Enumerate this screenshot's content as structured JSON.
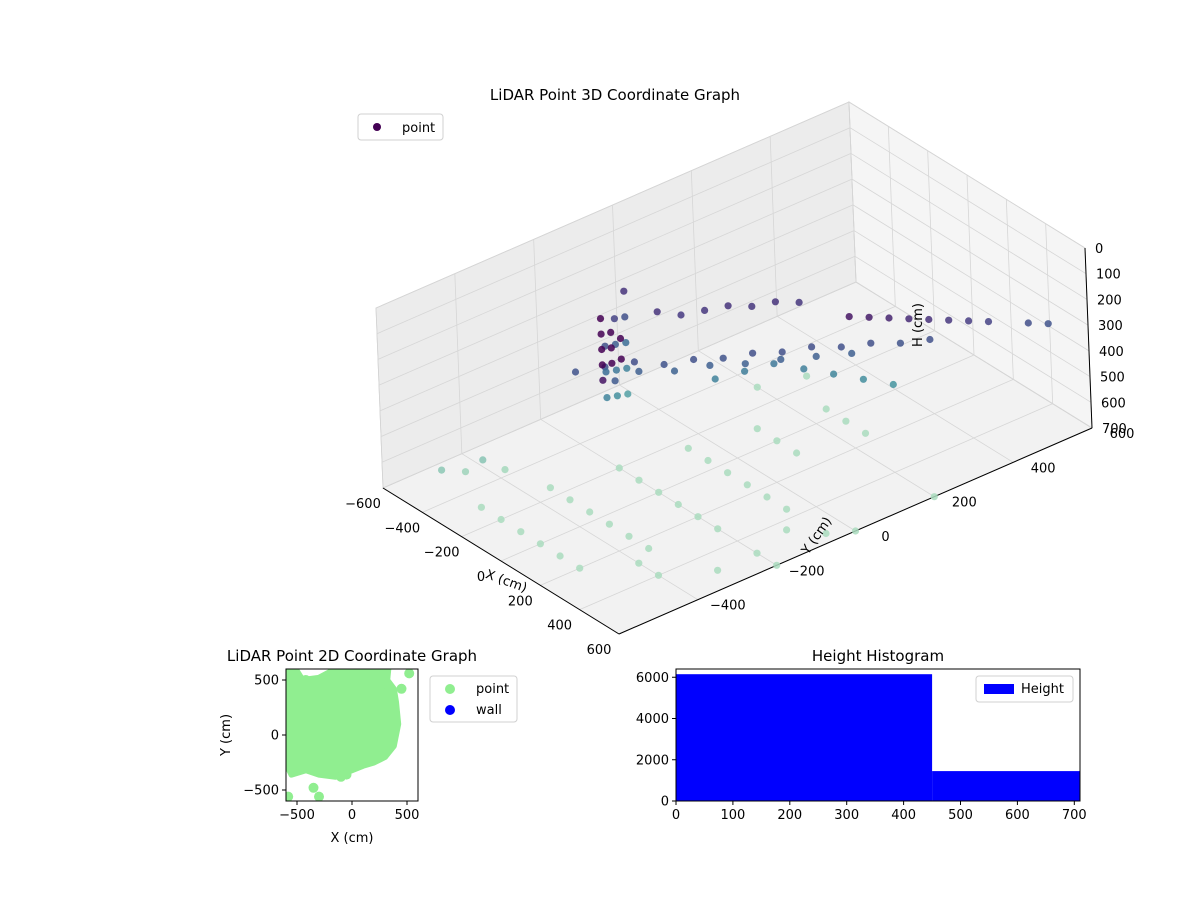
{
  "chart_data": [
    {
      "type": "scatter3d",
      "title": "LiDAR Point 3D Coordinate Graph",
      "xlabel": "X (cm)",
      "ylabel": "Y (cm)",
      "zlabel": "H (cm)",
      "xlim": [
        -600,
        600
      ],
      "ylim": [
        -600,
        600
      ],
      "zlim": [
        0,
        700
      ],
      "z_inverted": true,
      "x_ticks": [
        -600,
        -400,
        -200,
        0,
        200,
        400,
        600
      ],
      "y_ticks": [
        -400,
        -200,
        0,
        200,
        400,
        600
      ],
      "z_ticks": [
        0,
        100,
        200,
        300,
        400,
        500,
        600,
        700
      ],
      "x_tick_labels": [
        "−600",
        "−400",
        "−200",
        "0",
        "200",
        "400",
        "600"
      ],
      "y_tick_labels": [
        "−400",
        "−200",
        "0",
        "200",
        "400",
        "600"
      ],
      "z_tick_labels": [
        "0",
        "100",
        "200",
        "300",
        "400",
        "500",
        "600",
        "700"
      ],
      "colormap": "viridis",
      "grid": true,
      "legend": {
        "placement": "upper-left",
        "entries": [
          {
            "label": "point",
            "color": "#440154"
          }
        ]
      },
      "series": [
        {
          "name": "point",
          "points_xyz": [
            [
              -150,
              -250,
              250
            ],
            [
              -100,
              -200,
              240
            ],
            [
              -50,
              -150,
              260
            ],
            [
              0,
              -100,
              250
            ],
            [
              50,
              -50,
              255
            ],
            [
              100,
              0,
              245
            ],
            [
              150,
              50,
              250
            ],
            [
              200,
              100,
              240
            ],
            [
              250,
              150,
              250
            ],
            [
              300,
              200,
              245
            ],
            [
              350,
              250,
              255
            ],
            [
              400,
              300,
              250
            ],
            [
              -120,
              -180,
              300
            ],
            [
              -60,
              -120,
              310
            ],
            [
              0,
              -60,
              300
            ],
            [
              60,
              0,
              305
            ],
            [
              120,
              60,
              300
            ],
            [
              180,
              120,
              300
            ],
            [
              240,
              180,
              300
            ],
            [
              -200,
              -300,
              260
            ],
            [
              -100,
              -250,
              280
            ],
            [
              -180,
              -100,
              150
            ],
            [
              -140,
              -60,
              170
            ],
            [
              -100,
              -20,
              160
            ],
            [
              -60,
              20,
              150
            ],
            [
              -20,
              60,
              160
            ],
            [
              20,
              100,
              150
            ],
            [
              60,
              140,
              160
            ],
            [
              0,
              100,
              400
            ],
            [
              50,
              150,
              430
            ],
            [
              100,
              200,
              460
            ],
            [
              150,
              250,
              490
            ],
            [
              200,
              300,
              520
            ],
            [
              -50,
              50,
              420
            ],
            [
              -100,
              0,
              440
            ],
            [
              -350,
              -100,
              150
            ],
            [
              -350,
              -100,
              250
            ],
            [
              -350,
              -100,
              350
            ],
            [
              -350,
              -100,
              450
            ],
            [
              -350,
              -100,
              550
            ],
            [
              -300,
              -150,
              200
            ],
            [
              -300,
              -150,
              300
            ],
            [
              -300,
              -150,
              400
            ],
            [
              -300,
              -150,
              500
            ],
            [
              -250,
              -200,
              250
            ],
            [
              -250,
              -200,
              350
            ],
            [
              -250,
              -200,
              450
            ],
            [
              150,
              -400,
              -180
            ],
            [
              150,
              -400,
              -120
            ],
            [
              150,
              -400,
              -60
            ],
            [
              150,
              -400,
              0
            ],
            [
              150,
              -400,
              60
            ],
            [
              200,
              -400,
              -150
            ],
            [
              200,
              -400,
              -90
            ],
            [
              200,
              -400,
              -30
            ],
            [
              250,
              -400,
              -150
            ],
            [
              250,
              -400,
              -70
            ],
            [
              400,
              200,
              100
            ],
            [
              420,
              240,
              120
            ],
            [
              440,
              280,
              140
            ],
            [
              460,
              320,
              160
            ],
            [
              480,
              360,
              180
            ],
            [
              500,
              400,
              200
            ],
            [
              380,
              160,
              80
            ],
            [
              360,
              120,
              60
            ],
            [
              540,
              480,
              240
            ],
            [
              560,
              520,
              260
            ],
            [
              -500,
              -500,
              650
            ],
            [
              -480,
              -450,
              680
            ],
            [
              -450,
              -420,
              640
            ],
            [
              -420,
              -380,
              690
            ],
            [
              -300,
              -500,
              700
            ],
            [
              -200,
              -500,
              700
            ],
            [
              -100,
              -500,
              700
            ],
            [
              0,
              -500,
              700
            ],
            [
              100,
              -500,
              700
            ],
            [
              200,
              -500,
              700
            ],
            [
              -250,
              -350,
              700
            ],
            [
              -150,
              -350,
              700
            ],
            [
              -50,
              -350,
              700
            ],
            [
              50,
              -350,
              700
            ],
            [
              150,
              -350,
              700
            ],
            [
              250,
              -350,
              700
            ],
            [
              -200,
              -200,
              700
            ],
            [
              -100,
              -200,
              700
            ],
            [
              0,
              -200,
              700
            ],
            [
              100,
              -200,
              700
            ],
            [
              200,
              -200,
              700
            ],
            [
              300,
              -200,
              700
            ],
            [
              -150,
              -50,
              700
            ],
            [
              -50,
              -50,
              700
            ],
            [
              50,
              -50,
              700
            ],
            [
              150,
              -50,
              700
            ],
            [
              250,
              -50,
              700
            ],
            [
              350,
              -50,
              700
            ],
            [
              300,
              -400,
              700
            ],
            [
              400,
              -400,
              700
            ],
            [
              500,
              -300,
              700
            ],
            [
              500,
              -200,
              700
            ],
            [
              450,
              -100,
              700
            ],
            [
              550,
              -50,
              700
            ],
            [
              -100,
              100,
              700
            ],
            [
              0,
              100,
              700
            ],
            [
              100,
              100,
              700
            ],
            [
              -50,
              250,
              700
            ],
            [
              50,
              250,
              700
            ],
            [
              150,
              250,
              700
            ],
            [
              -300,
              200,
              700
            ],
            [
              -250,
              300,
              700
            ],
            [
              600,
              0,
              700
            ],
            [
              600,
              200,
              700
            ],
            [
              600,
              -200,
              700
            ]
          ]
        }
      ]
    },
    {
      "type": "scatter",
      "title": "LiDAR Point 2D Coordinate Graph",
      "xlabel": "X (cm)",
      "ylabel": "Y (cm)",
      "xlim": [
        -600,
        600
      ],
      "ylim": [
        -600,
        600
      ],
      "x_ticks": [
        -500,
        0,
        500
      ],
      "y_ticks": [
        -500,
        0,
        500
      ],
      "x_tick_labels": [
        "−500",
        "0",
        "500"
      ],
      "y_tick_labels": [
        "−500",
        "0",
        "500"
      ],
      "legend": {
        "placement": "outside-right",
        "entries": [
          {
            "label": "point",
            "color": "#90ee90"
          },
          {
            "label": "wall",
            "color": "#0000ff"
          }
        ]
      },
      "series": [
        {
          "name": "point",
          "color": "#90ee90",
          "region": [
            [
              -580,
              600
            ],
            [
              -500,
              580
            ],
            [
              -450,
              500
            ],
            [
              -300,
              520
            ],
            [
              -150,
              600
            ],
            [
              330,
              600
            ],
            [
              320,
              500
            ],
            [
              380,
              420
            ],
            [
              400,
              300
            ],
            [
              420,
              100
            ],
            [
              380,
              -100
            ],
            [
              300,
              -200
            ],
            [
              200,
              -250
            ],
            [
              100,
              -280
            ],
            [
              0,
              -320
            ],
            [
              -150,
              -380
            ],
            [
              -300,
              -360
            ],
            [
              -420,
              -320
            ],
            [
              -550,
              -360
            ],
            [
              -580,
              -300
            ],
            [
              -590,
              0
            ],
            [
              -590,
              300
            ]
          ],
          "extra_points": [
            [
              -520,
              550
            ],
            [
              -460,
              460
            ],
            [
              -420,
              500
            ],
            [
              450,
              420
            ],
            [
              520,
              560
            ],
            [
              -400,
              -300
            ],
            [
              -350,
              -480
            ],
            [
              -300,
              -560
            ],
            [
              -580,
              -560
            ],
            [
              -200,
              -300
            ],
            [
              -100,
              -380
            ],
            [
              -50,
              -360
            ],
            [
              330,
              450
            ],
            [
              300,
              470
            ]
          ]
        },
        {
          "name": "wall",
          "color": "#0000ff",
          "values": []
        }
      ]
    },
    {
      "type": "bar",
      "title": "Height Histogram",
      "xlim": [
        0,
        710
      ],
      "ylim": [
        0,
        6400
      ],
      "x_ticks": [
        0,
        100,
        200,
        300,
        400,
        500,
        600,
        700
      ],
      "y_ticks": [
        0,
        2000,
        4000,
        6000
      ],
      "x_tick_labels": [
        "0",
        "100",
        "200",
        "300",
        "400",
        "500",
        "600",
        "700"
      ],
      "y_tick_labels": [
        "0",
        "2000",
        "4000",
        "6000"
      ],
      "legend": {
        "placement": "top-right",
        "entries": [
          {
            "label": "Height",
            "color": "#0000ff"
          }
        ]
      },
      "series": [
        {
          "name": "Height",
          "color": "#0000ff",
          "bins": [
            [
              0,
              450,
              6150
            ],
            [
              450,
              710,
              1450
            ]
          ]
        }
      ]
    }
  ]
}
